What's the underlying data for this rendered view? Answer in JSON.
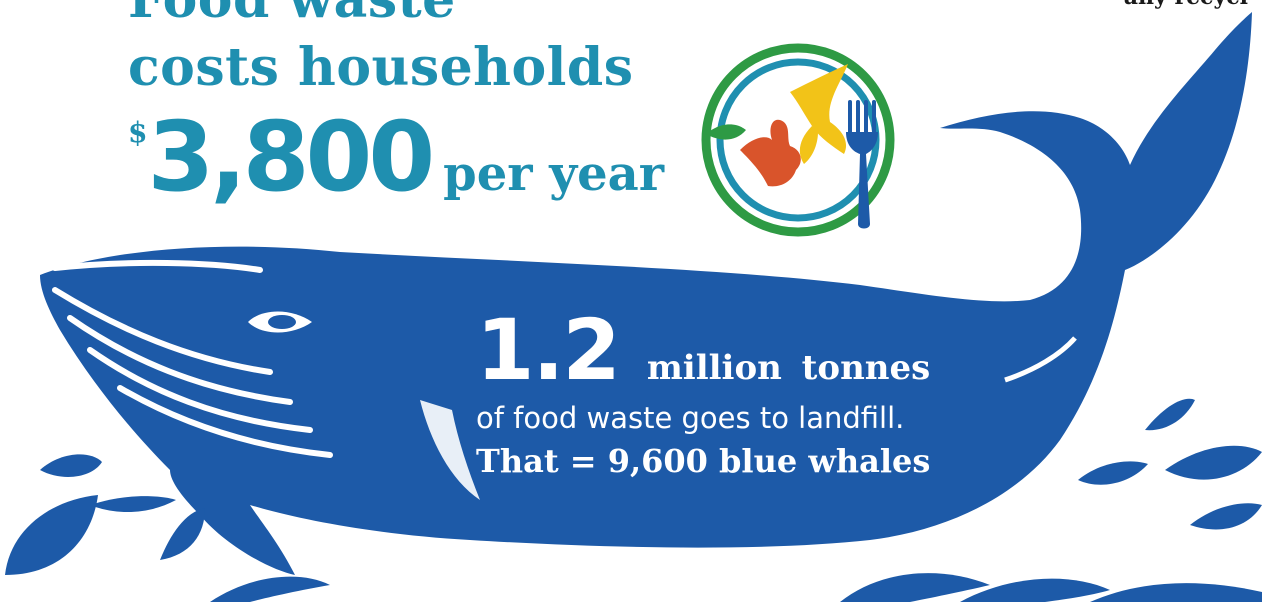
{
  "headline": {
    "line1": "Food waste",
    "line2": "costs households",
    "currency": "$",
    "amount": "3,800",
    "period": "per year"
  },
  "corner_text": "any recycl",
  "stats": {
    "big_number": "1.2",
    "unit": "million tonnes",
    "description": "of food waste goes to landfill.",
    "comparison": "That = 9,600 blue whales"
  },
  "colors": {
    "headline": "#1f8fb0",
    "whale": "#1d5aa8",
    "plate_outer": "#2e9a44",
    "plate_inner": "#1f8fb0",
    "apple_core": "#d9542b",
    "banana_peel": "#f2c318",
    "leaf": "#2e9a44",
    "fork": "#1d5aa8"
  },
  "icons": [
    "plate-food-waste-icon",
    "whale-illustration",
    "water-drop-icon"
  ]
}
